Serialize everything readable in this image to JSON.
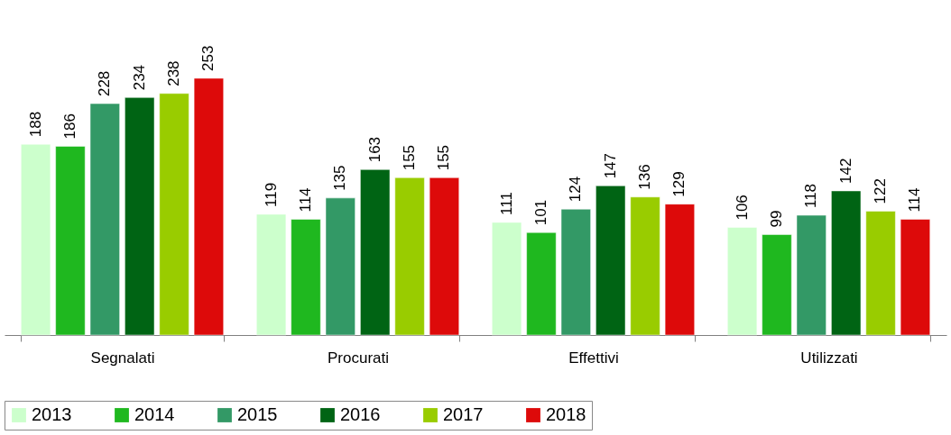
{
  "chart_data": {
    "type": "bar",
    "categories": [
      "Segnalati",
      "Procurati",
      "Effettivi",
      "Utilizzati"
    ],
    "series": [
      {
        "name": "2013",
        "color": "#ccffcc",
        "values": [
          188,
          119,
          111,
          106
        ]
      },
      {
        "name": "2014",
        "color": "#1fb81f",
        "values": [
          186,
          114,
          101,
          99
        ]
      },
      {
        "name": "2015",
        "color": "#339966",
        "values": [
          228,
          135,
          124,
          118
        ]
      },
      {
        "name": "2016",
        "color": "#006414",
        "values": [
          234,
          163,
          147,
          142
        ]
      },
      {
        "name": "2017",
        "color": "#99cc00",
        "values": [
          238,
          155,
          136,
          122
        ]
      },
      {
        "name": "2018",
        "color": "#dd0a0a",
        "values": [
          253,
          155,
          129,
          114
        ]
      }
    ],
    "data_labels": true,
    "legend": "bottom",
    "grid": false
  }
}
